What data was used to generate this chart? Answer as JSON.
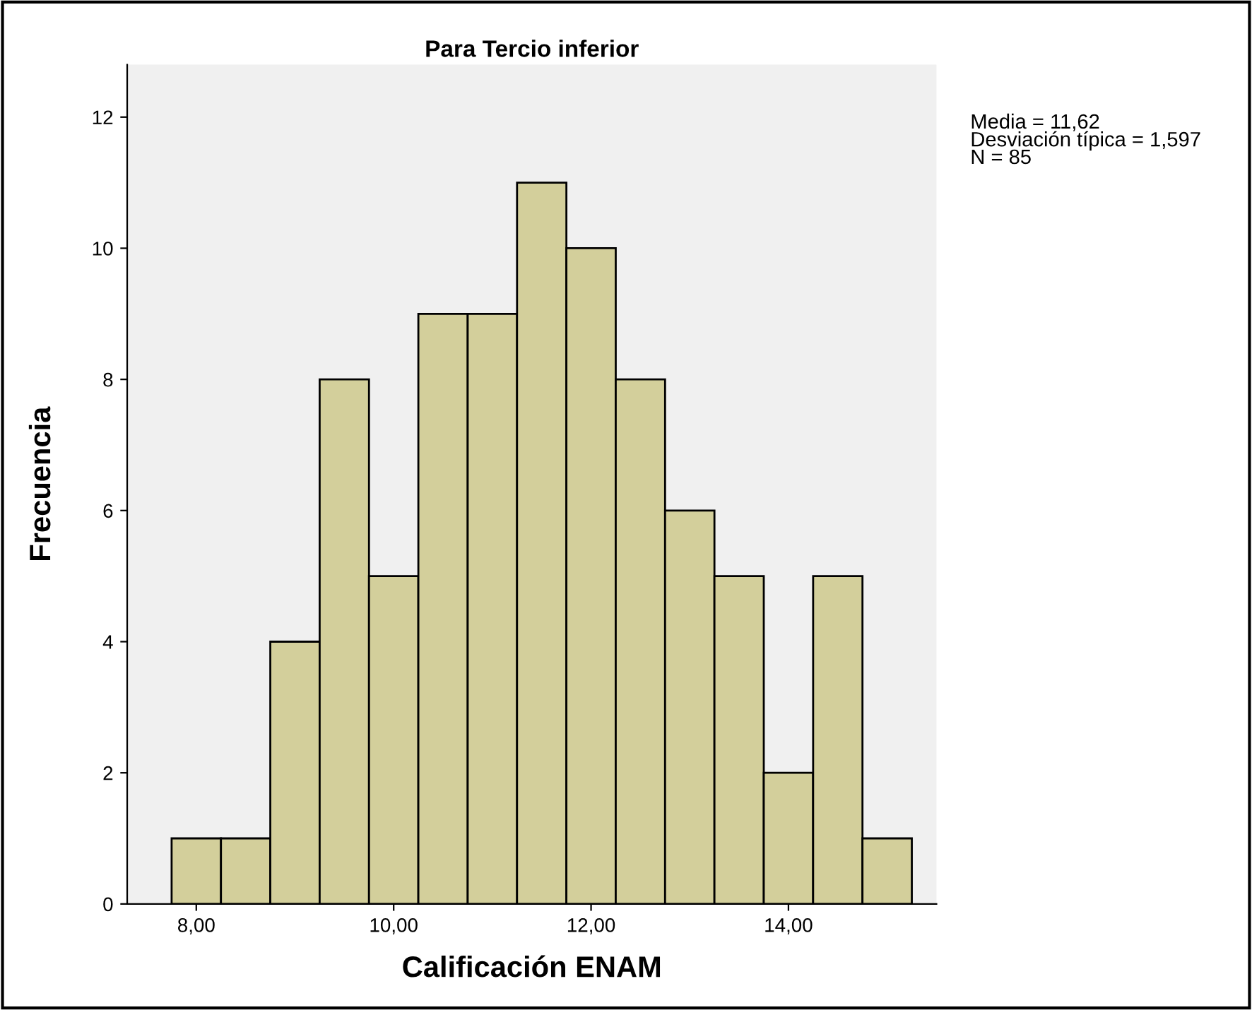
{
  "chart_data": {
    "type": "histogram",
    "title": "Para Tercio inferior",
    "xlabel": "Calificación ENAM",
    "ylabel": "Frecuencia",
    "bins": [
      7.75,
      8.25,
      8.75,
      9.25,
      9.75,
      10.25,
      10.75,
      11.25,
      11.75,
      12.25,
      12.75,
      13.25,
      13.75,
      14.25,
      14.75,
      15.25
    ],
    "values": [
      1,
      1,
      4,
      8,
      5,
      9,
      9,
      11,
      10,
      8,
      6,
      5,
      2,
      5,
      1
    ],
    "color": "#d3cf9b",
    "xlim": [
      7.3,
      15.5
    ],
    "xticks": [
      {
        "value": 8,
        "label": "8,00"
      },
      {
        "value": 10,
        "label": "10,00"
      },
      {
        "value": 12,
        "label": "12,00"
      },
      {
        "value": 14,
        "label": "14,00"
      }
    ],
    "ylim": [
      0,
      12.8
    ],
    "yticks": [
      0,
      2,
      4,
      6,
      8,
      10,
      12
    ],
    "grid": false,
    "legend": false,
    "annotations": [
      "Media = 11,62",
      "Desviación típica = 1,597",
      "N = 85"
    ]
  }
}
